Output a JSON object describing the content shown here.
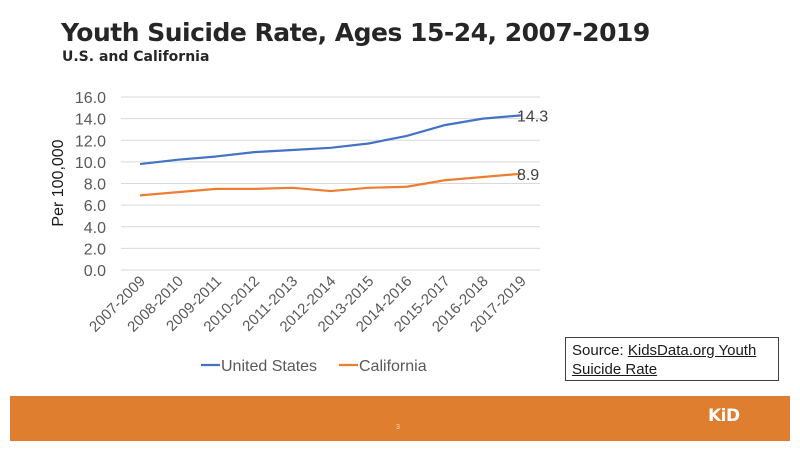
{
  "slide": {
    "title": "Youth Suicide Rate, Ages 15-24, 2007-2019",
    "subtitle": "U.S. and California",
    "source_prefix": "Source: ",
    "source_link": "KidsData.org Youth Suicide Rate",
    "page_number": "3",
    "logo_text": "KiD",
    "colors": {
      "footer": "#de7e2e",
      "us_line": "#4472c4",
      "ca_line": "#ed7d31"
    }
  },
  "chart_data": {
    "type": "line",
    "title": "Youth Suicide Rate, Ages 15-24, 2007-2019",
    "subtitle": "U.S. and California",
    "xlabel": "",
    "ylabel": "Per 100,000",
    "ylim": [
      0,
      16
    ],
    "yticks": [
      "0.0",
      "2.0",
      "4.0",
      "6.0",
      "8.0",
      "10.0",
      "12.0",
      "14.0",
      "16.0"
    ],
    "grid": true,
    "legend_position": "bottom",
    "categories": [
      "2007-2009",
      "2008-2010",
      "2009-2011",
      "2010-2012",
      "2011-2013",
      "2012-2014",
      "2013-2015",
      "2014-2016",
      "2015-2017",
      "2016-2018",
      "2017-2019"
    ],
    "series": [
      {
        "name": "United States",
        "color": "#4472c4",
        "values": [
          9.8,
          10.2,
          10.5,
          10.9,
          11.1,
          11.3,
          11.7,
          12.4,
          13.4,
          14.0,
          14.3
        ],
        "end_label": "14.3"
      },
      {
        "name": "California",
        "color": "#ed7d31",
        "values": [
          6.9,
          7.2,
          7.5,
          7.5,
          7.6,
          7.3,
          7.6,
          7.7,
          8.3,
          8.6,
          8.9
        ],
        "end_label": "8.9"
      }
    ]
  }
}
